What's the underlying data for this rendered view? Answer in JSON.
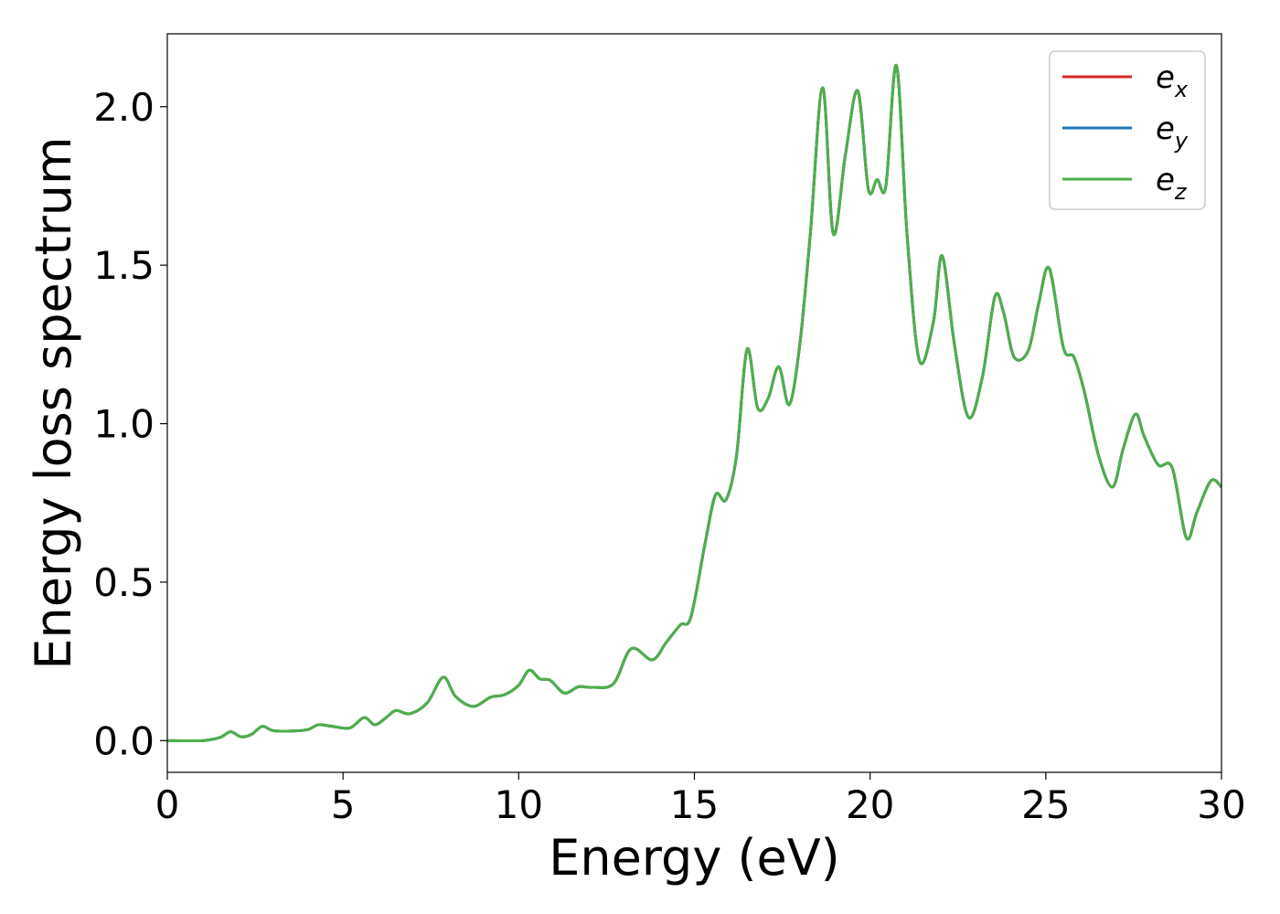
{
  "chart_data": {
    "type": "line",
    "xlabel": "Energy (eV)",
    "ylabel": "Energy loss spectrum",
    "xlim": [
      0,
      30
    ],
    "ylim": [
      -0.1,
      2.23
    ],
    "x_ticks": [
      0,
      5,
      10,
      15,
      20,
      25,
      30
    ],
    "y_ticks": [
      0.0,
      0.5,
      1.0,
      1.5,
      2.0
    ],
    "x_tick_labels": [
      "0",
      "5",
      "10",
      "15",
      "20",
      "25",
      "30"
    ],
    "y_tick_labels": [
      "0.0",
      "0.5",
      "1.0",
      "1.5",
      "2.0"
    ],
    "grid": false,
    "legend_position": "top-right",
    "series": [
      {
        "name": "e_x",
        "color": "#d62728",
        "label_base": "e",
        "label_sub": "x"
      },
      {
        "name": "e_y",
        "color": "#1f77b4",
        "label_base": "e",
        "label_sub": "y"
      },
      {
        "name": "e_z",
        "color": "#4daf4a",
        "label_base": "e",
        "label_sub": "z"
      }
    ],
    "x": [
      0,
      1.0,
      1.5,
      1.8,
      2.1,
      2.4,
      2.7,
      3.0,
      3.5,
      4.0,
      4.3,
      4.7,
      5.2,
      5.6,
      5.9,
      6.2,
      6.5,
      6.9,
      7.4,
      7.85,
      8.2,
      8.7,
      9.2,
      9.6,
      10.0,
      10.3,
      10.6,
      10.9,
      11.3,
      11.7,
      12.1,
      12.7,
      13.2,
      13.8,
      14.2,
      14.6,
      14.9,
      15.3,
      15.6,
      15.9,
      16.2,
      16.5,
      16.8,
      17.1,
      17.4,
      17.7,
      18.0,
      18.3,
      18.65,
      18.95,
      19.3,
      19.65,
      19.95,
      20.2,
      20.45,
      20.75,
      21.05,
      21.4,
      21.8,
      22.05,
      22.4,
      22.8,
      23.2,
      23.55,
      23.8,
      24.1,
      24.5,
      24.8,
      25.1,
      25.5,
      25.8,
      26.1,
      26.5,
      26.9,
      27.2,
      27.55,
      27.8,
      28.2,
      28.6,
      29.0,
      29.3,
      29.7,
      30.0
    ],
    "values": [
      0.0,
      0.0,
      0.01,
      0.028,
      0.012,
      0.02,
      0.045,
      0.032,
      0.03,
      0.035,
      0.05,
      0.045,
      0.04,
      0.073,
      0.05,
      0.07,
      0.095,
      0.085,
      0.12,
      0.2,
      0.14,
      0.108,
      0.137,
      0.145,
      0.175,
      0.222,
      0.195,
      0.19,
      0.15,
      0.17,
      0.168,
      0.18,
      0.29,
      0.255,
      0.31,
      0.365,
      0.39,
      0.62,
      0.775,
      0.76,
      0.9,
      1.235,
      1.05,
      1.08,
      1.18,
      1.06,
      1.25,
      1.6,
      2.06,
      1.6,
      1.85,
      2.05,
      1.74,
      1.77,
      1.75,
      2.13,
      1.6,
      1.2,
      1.32,
      1.53,
      1.25,
      1.02,
      1.15,
      1.4,
      1.35,
      1.21,
      1.23,
      1.38,
      1.49,
      1.24,
      1.21,
      1.1,
      0.9,
      0.8,
      0.92,
      1.03,
      0.96,
      0.87,
      0.86,
      0.64,
      0.72,
      0.82,
      0.8
    ]
  }
}
